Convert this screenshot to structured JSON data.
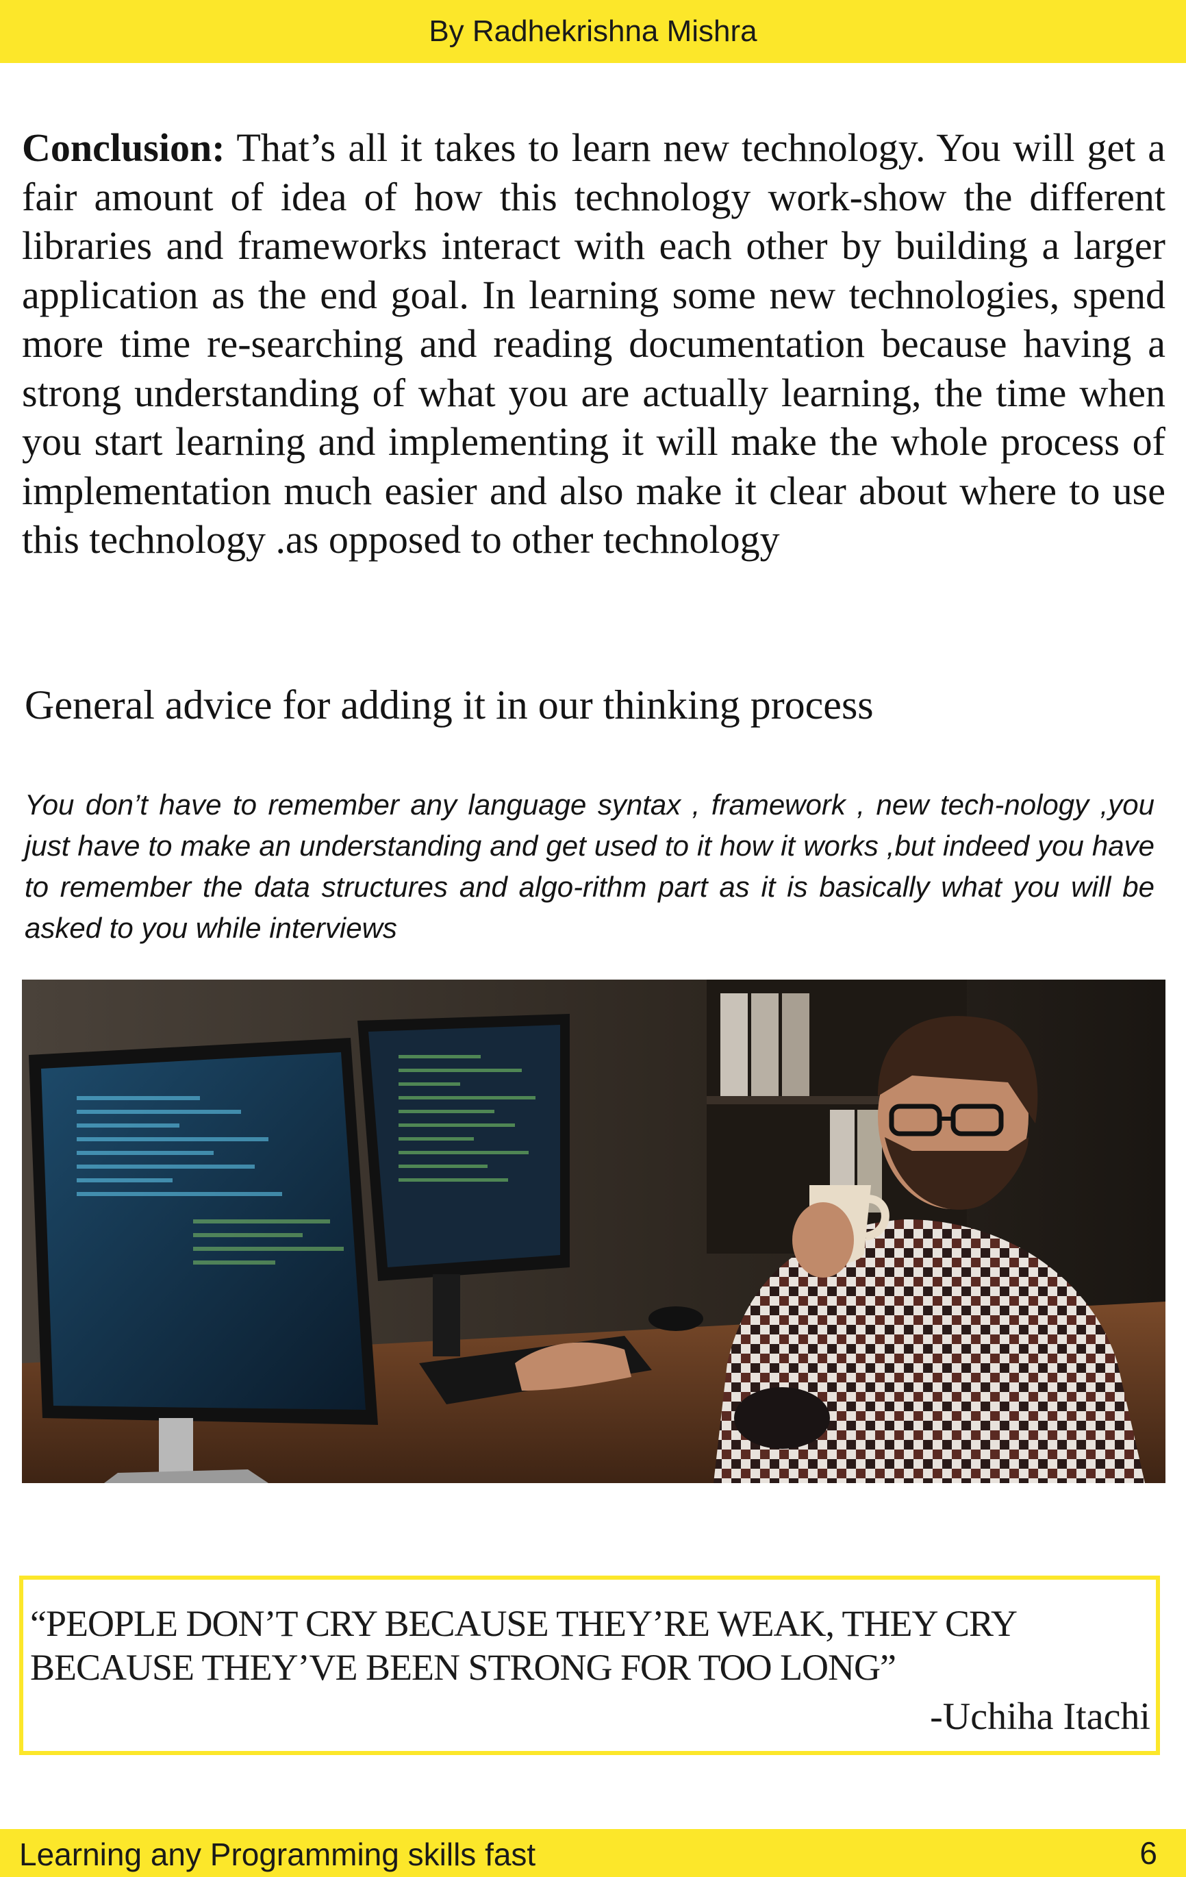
{
  "header": {
    "author": "By Radhekrishna Mishra"
  },
  "conclusion": {
    "label": "Conclusion:",
    "text": " That’s all it takes to learn new technology. You will get a fair amount of idea of how this technology work-show the different libraries and frameworks interact with each other by building a larger application as the end goal. In learning some new technologies, spend more time re-searching and reading documentation because having a strong understanding of what you are actually learning, the time when you start learning and implementing it will make the whole process of implementation much easier and also make it clear about where to use this technology .as opposed to other technology"
  },
  "advice": {
    "heading": "General advice for adding it in our thinking process",
    "text": "You don’t have to remember any language syntax , framework , new tech-nology ,you just have to make an understanding and get used to it how it works ,but indeed you have to remember the data structures and algo-rithm part as it is basically what you will be asked to you while interviews"
  },
  "photo": {
    "icon": "developer-at-desk-photo"
  },
  "quote": {
    "text": "“PEOPLE DON’T CRY BECAUSE THEY’RE WEAK, THEY CRY BECAUSE THEY’VE BEEN STRONG FOR TOO LONG”",
    "author": "-Uchiha Itachi"
  },
  "footer": {
    "title": "Learning any Programming skills fast",
    "page": "6"
  },
  "colors": {
    "accent": "#fce72a"
  }
}
